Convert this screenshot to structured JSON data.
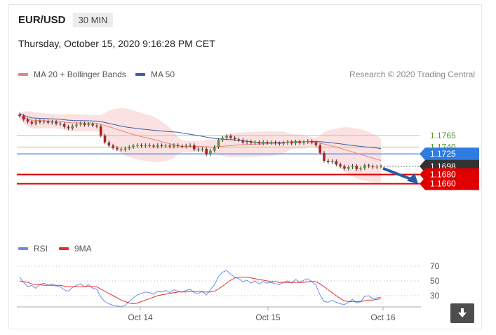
{
  "header": {
    "symbol": "EUR/USD",
    "timeframe": "30 MIN"
  },
  "datetime": "Thursday, October 15, 2020 9:16:28 PM CET",
  "legend": {
    "ma20": {
      "label": "MA 20 + Bollinger Bands",
      "color": "#f08080"
    },
    "ma50": {
      "label": "MA 50",
      "color": "#3b5fa0"
    }
  },
  "credit": "Research © 2020 Trading Central",
  "rsi_legend": {
    "rsi": {
      "label": "RSI",
      "color": "#6a8ee8"
    },
    "ma9": {
      "label": "9MA",
      "color": "#e53030"
    }
  },
  "price_levels": [
    {
      "value": 1.1765,
      "label": "1.1765",
      "kind": "line",
      "color": "#a9d18e"
    },
    {
      "value": 1.174,
      "label": "1.1740",
      "kind": "line",
      "color": "#a9d18e"
    },
    {
      "value": 1.1725,
      "label": "1.1725",
      "kind": "tag",
      "color": "#2f7de1"
    },
    {
      "value": 1.1698,
      "label": "1.1698",
      "kind": "tag",
      "color": "#333333"
    },
    {
      "value": 1.168,
      "label": "1.1680",
      "kind": "tag",
      "color": "#e00000"
    },
    {
      "value": 1.166,
      "label": "1.1660",
      "kind": "tag",
      "color": "#e00000"
    }
  ],
  "chart_data": [
    {
      "type": "candlestick",
      "title": "",
      "x_ticks": [
        "Oct 14",
        "Oct 15",
        "Oct 16"
      ],
      "ylim": [
        1.1645,
        1.183
      ],
      "close": [
        1.1808,
        1.18,
        1.1795,
        1.1791,
        1.1797,
        1.1794,
        1.1796,
        1.1793,
        1.1795,
        1.1791,
        1.179,
        1.1784,
        1.1781,
        1.1786,
        1.1789,
        1.1791,
        1.1788,
        1.179,
        1.1787,
        1.1785,
        1.1765,
        1.175,
        1.1743,
        1.1738,
        1.1735,
        1.1734,
        1.1737,
        1.174,
        1.1743,
        1.1744,
        1.1742,
        1.1744,
        1.1743,
        1.1741,
        1.1744,
        1.1742,
        1.1743,
        1.1741,
        1.1744,
        1.1742,
        1.1741,
        1.1743,
        1.1744,
        1.1735,
        1.1734,
        1.1736,
        1.1724,
        1.1732,
        1.174,
        1.1755,
        1.176,
        1.1764,
        1.176,
        1.1757,
        1.1755,
        1.175,
        1.1752,
        1.1749,
        1.1751,
        1.1748,
        1.1751,
        1.1749,
        1.175,
        1.1748,
        1.1747,
        1.1749,
        1.1751,
        1.1748,
        1.1752,
        1.1749,
        1.1751,
        1.1753,
        1.175,
        1.1744,
        1.1727,
        1.171,
        1.1707,
        1.1709,
        1.1702,
        1.1698,
        1.1693,
        1.1696,
        1.1699,
        1.1692,
        1.1694,
        1.17,
        1.1698,
        1.1696,
        1.1697,
        1.1698
      ],
      "overlays": [
        {
          "name": "MA 20 + Bollinger Bands",
          "color": "#f08080"
        },
        {
          "name": "MA 50",
          "color": "#3b5fa0"
        }
      ],
      "horizontal_levels": [
        1.1765,
        1.174,
        1.1725,
        1.1698,
        1.168,
        1.166
      ],
      "arrow": {
        "from": 1.1698,
        "to": 1.166,
        "direction": "down"
      }
    },
    {
      "type": "line",
      "y_ticks": [
        "70",
        "50",
        "30"
      ],
      "ylim": [
        10,
        90
      ],
      "series": [
        {
          "name": "RSI",
          "values": [
            55,
            48,
            42,
            44,
            40,
            45,
            47,
            44,
            46,
            43,
            42,
            38,
            36,
            41,
            44,
            46,
            42,
            45,
            40,
            39,
            28,
            22,
            19,
            17,
            16,
            15,
            17,
            22,
            27,
            31,
            33,
            35,
            34,
            32,
            36,
            35,
            37,
            34,
            38,
            36,
            35,
            37,
            39,
            34,
            33,
            36,
            31,
            38,
            45,
            56,
            62,
            64,
            59,
            55,
            53,
            49,
            51,
            47,
            50,
            46,
            49,
            47,
            48,
            46,
            45,
            48,
            50,
            47,
            52,
            48,
            51,
            53,
            49,
            44,
            31,
            22,
            21,
            24,
            21,
            19,
            18,
            21,
            25,
            20,
            22,
            29,
            30,
            26,
            27,
            28
          ]
        },
        {
          "name": "9MA",
          "values": [
            50,
            49,
            48,
            46,
            45,
            45,
            44,
            44,
            44,
            44,
            44,
            43,
            42,
            42,
            42,
            42,
            42,
            43,
            42,
            42,
            39,
            36,
            33,
            30,
            27,
            24,
            22,
            20,
            19,
            20,
            22,
            24,
            26,
            28,
            30,
            31,
            32,
            33,
            34,
            35,
            35,
            35,
            36,
            36,
            36,
            35,
            35,
            35,
            36,
            39,
            43,
            47,
            51,
            54,
            55,
            55,
            55,
            54,
            53,
            52,
            51,
            50,
            49,
            49,
            48,
            48,
            48,
            48,
            48,
            48,
            48,
            49,
            49,
            49,
            46,
            42,
            38,
            34,
            30,
            26,
            23,
            22,
            22,
            22,
            22,
            23,
            24,
            24,
            25,
            26
          ]
        }
      ]
    }
  ]
}
